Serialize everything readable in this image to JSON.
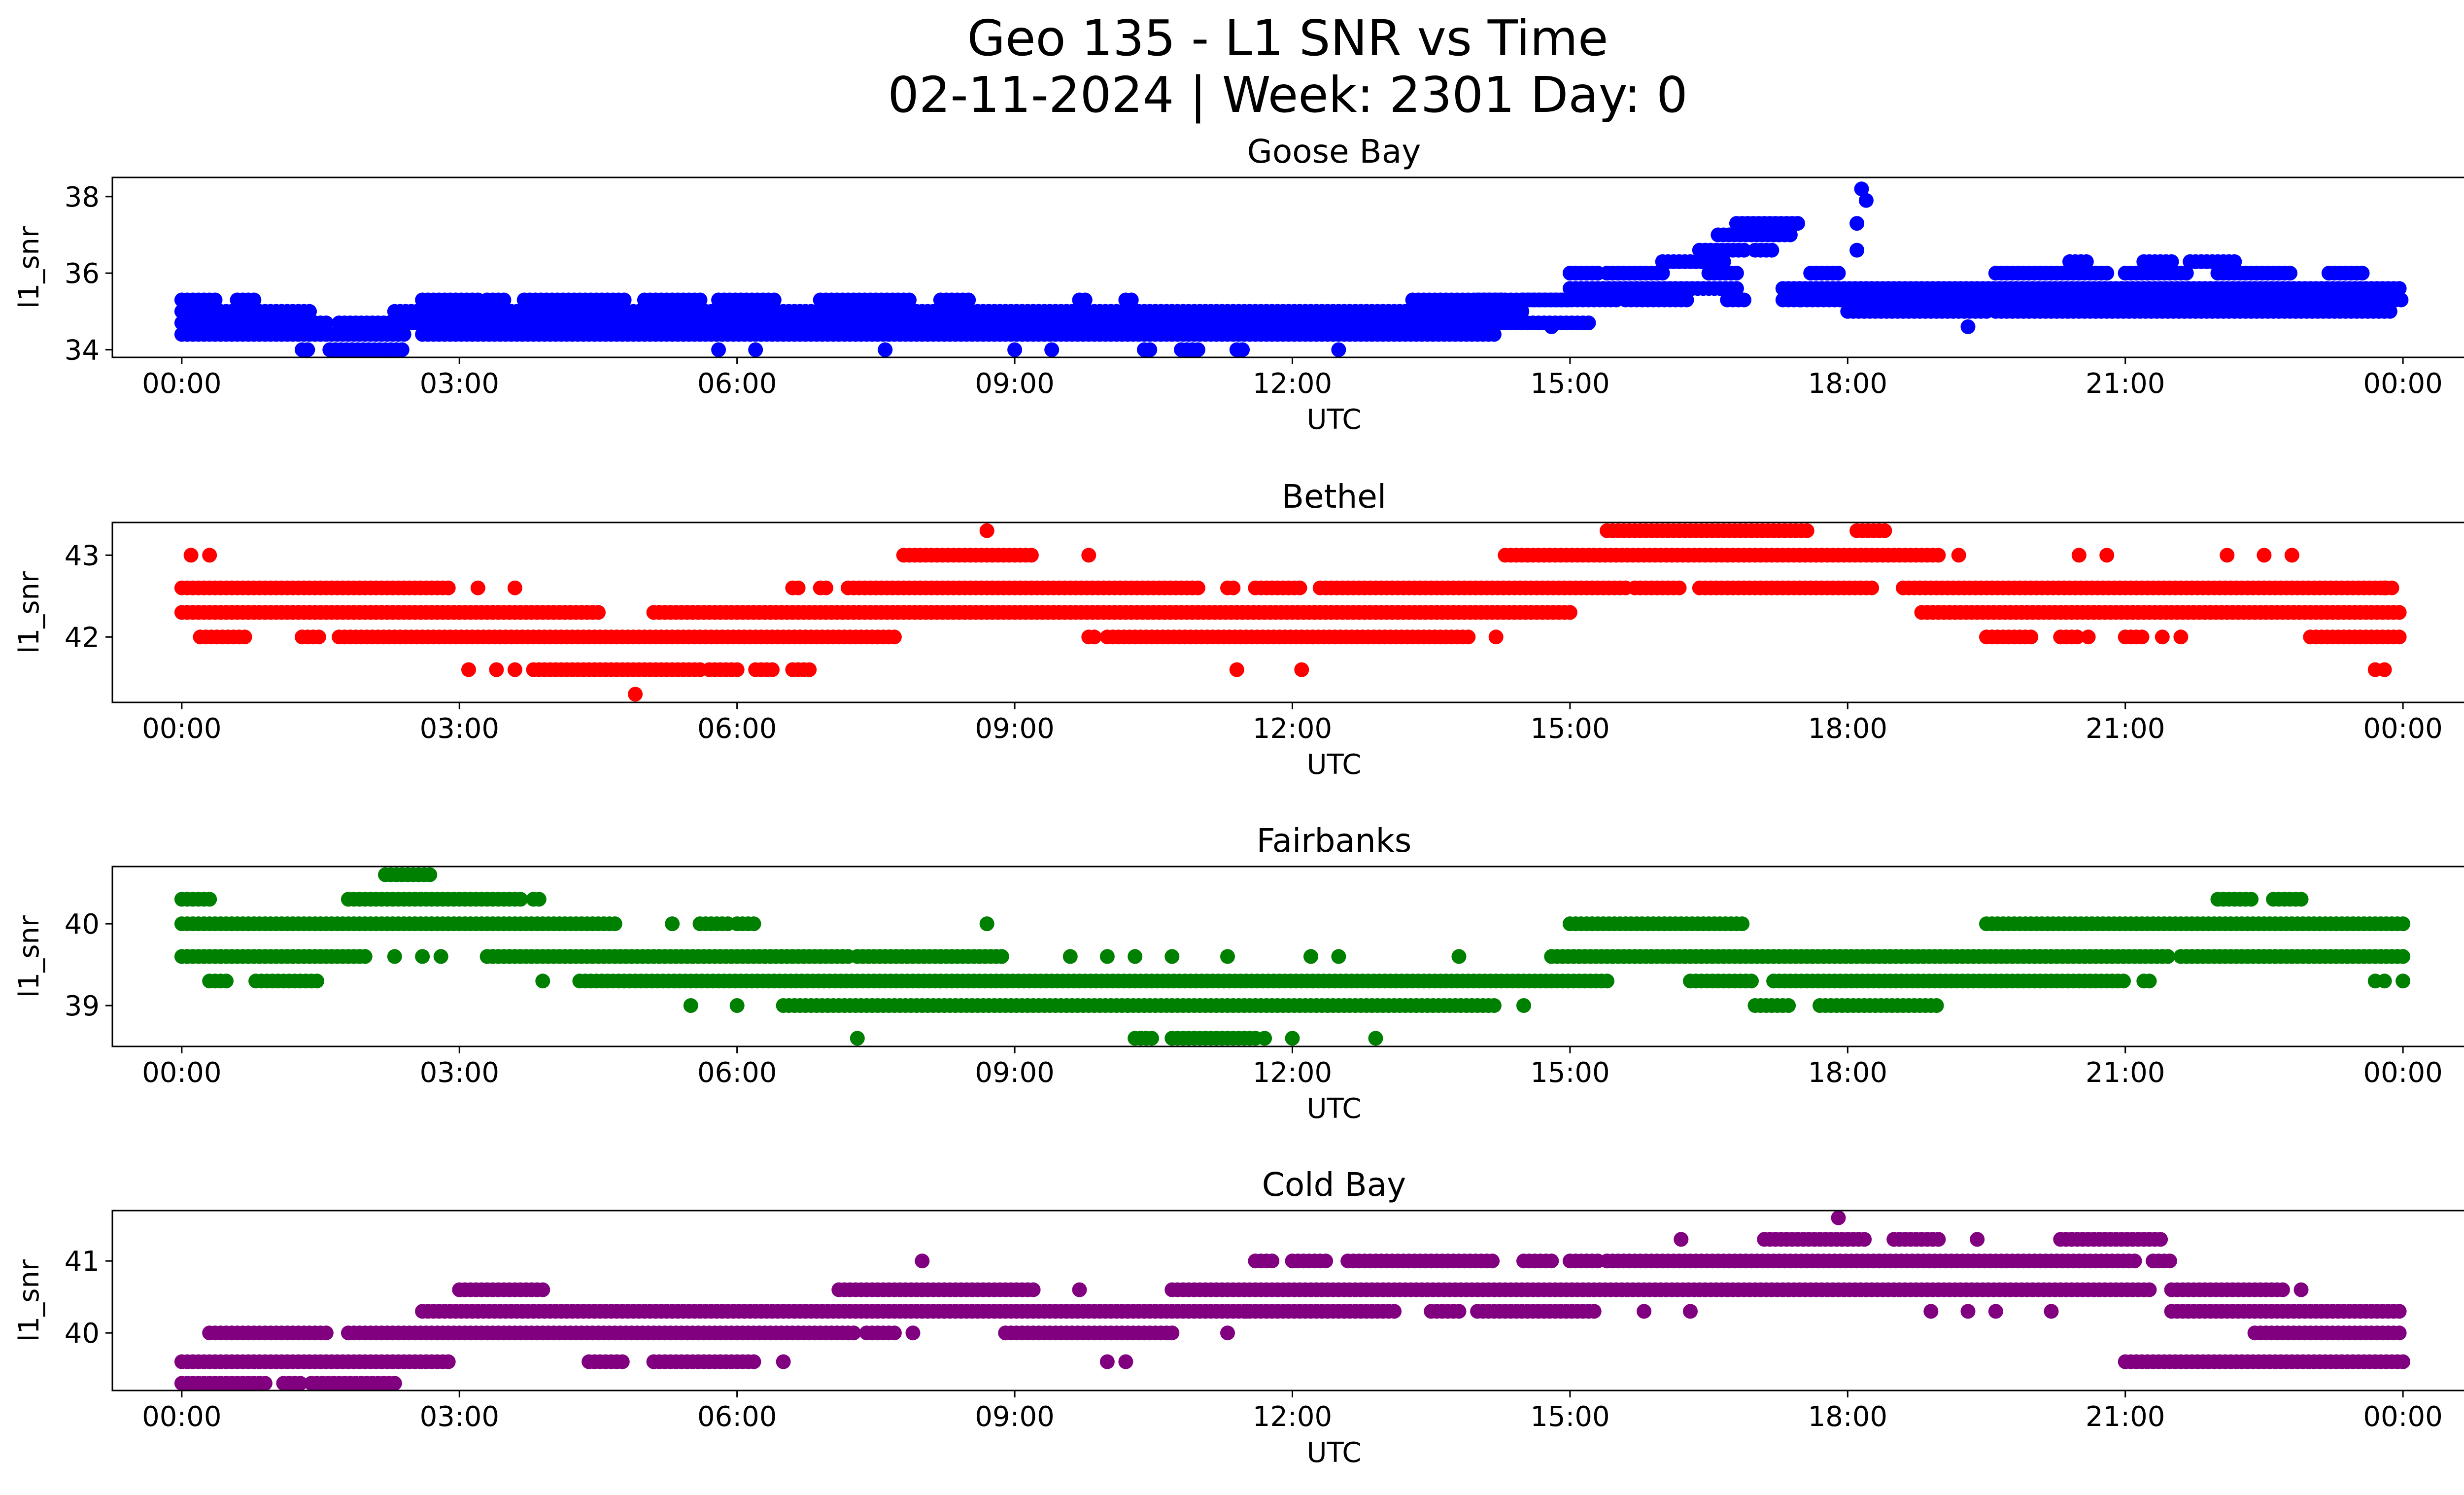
{
  "figure": {
    "title_line1": "Geo 135 - L1 SNR vs Time",
    "title_line2": "02-11-2024 | Week: 2301 Day: 0"
  },
  "chart_data": [
    {
      "type": "scatter",
      "title": "Goose Bay",
      "xlabel": "UTC",
      "ylabel": "l1_snr",
      "color": "#0000ff",
      "xlim_hours": [
        -0.75,
        25.65
      ],
      "ylim": [
        33.8,
        38.5
      ],
      "xticks": [
        0,
        3,
        6,
        9,
        12,
        15,
        18,
        21,
        24
      ],
      "xtick_labels": [
        "00:00",
        "03:00",
        "06:00",
        "09:00",
        "12:00",
        "15:00",
        "18:00",
        "21:00",
        "00:00"
      ],
      "yticks": [
        34,
        36,
        38
      ],
      "ytick_labels": [
        "34",
        "36",
        "38"
      ],
      "bands": [
        {
          "level": 35.3,
          "ranges": [
            [
              0.0,
              0.4
            ],
            [
              0.6,
              0.8
            ],
            [
              2.6,
              3.2
            ],
            [
              3.3,
              3.5
            ],
            [
              3.7,
              4.8
            ],
            [
              5.0,
              5.6
            ],
            [
              5.8,
              6.4
            ],
            [
              6.9,
              7.9
            ],
            [
              8.2,
              8.5
            ],
            [
              9.7,
              9.8
            ],
            [
              10.2,
              10.3
            ],
            [
              13.3,
              14.3
            ],
            [
              14.5,
              15.0
            ]
          ]
        },
        {
          "level": 35.0,
          "ranges": [
            [
              0.0,
              1.4
            ],
            [
              2.3,
              14.5
            ]
          ]
        },
        {
          "level": 34.7,
          "ranges": [
            [
              0.0,
              1.6
            ],
            [
              1.7,
              15.2
            ]
          ]
        },
        {
          "level": 34.4,
          "ranges": [
            [
              0.0,
              2.4
            ],
            [
              2.6,
              14.2
            ]
          ]
        },
        {
          "level": 34.0,
          "ranges": [
            [
              1.3,
              1.4
            ],
            [
              1.6,
              2.4
            ],
            [
              10.4,
              10.5
            ],
            [
              10.8,
              11.0
            ],
            [
              11.4,
              11.5
            ]
          ]
        },
        {
          "level": 35.3,
          "ranges": [
            [
              14.0,
              15.5
            ],
            [
              15.6,
              16.3
            ],
            [
              16.7,
              16.9
            ],
            [
              17.3,
              17.5
            ],
            [
              17.5,
              24.0
            ]
          ]
        },
        {
          "level": 35.6,
          "ranges": [
            [
              15.0,
              16.8
            ],
            [
              17.3,
              24.0
            ]
          ]
        },
        {
          "level": 36.0,
          "ranges": [
            [
              15.0,
              15.3
            ],
            [
              15.4,
              16.0
            ],
            [
              16.5,
              16.8
            ],
            [
              17.6,
              17.9
            ],
            [
              19.6,
              20.8
            ],
            [
              21.0,
              21.7
            ],
            [
              22.0,
              22.8
            ],
            [
              23.2,
              23.6
            ]
          ]
        },
        {
          "level": 36.3,
          "ranges": [
            [
              16.0,
              16.7
            ],
            [
              20.4,
              20.6
            ],
            [
              21.2,
              21.5
            ],
            [
              21.7,
              22.2
            ]
          ]
        },
        {
          "level": 36.6,
          "ranges": [
            [
              16.4,
              16.9
            ],
            [
              17.0,
              17.2
            ]
          ]
        },
        {
          "level": 37.0,
          "ranges": [
            [
              16.6,
              17.4
            ]
          ]
        },
        {
          "level": 37.3,
          "ranges": [
            [
              16.8,
              17.5
            ]
          ]
        },
        {
          "level": 35.0,
          "ranges": [
            [
              18.0,
              19.5
            ],
            [
              19.6,
              23.9
            ]
          ]
        }
      ],
      "points": [
        [
          18.15,
          38.2
        ],
        [
          18.2,
          37.9
        ],
        [
          18.1,
          37.3
        ],
        [
          18.1,
          36.6
        ],
        [
          19.3,
          34.6
        ],
        [
          14.8,
          34.6
        ],
        [
          12.5,
          34.0
        ],
        [
          7.6,
          34.0
        ],
        [
          9.0,
          34.0
        ],
        [
          5.8,
          34.0
        ],
        [
          6.2,
          34.0
        ],
        [
          9.4,
          34.0
        ]
      ]
    },
    {
      "type": "scatter",
      "title": "Bethel",
      "xlabel": "UTC",
      "ylabel": "l1_snr",
      "color": "#ff0000",
      "xlim_hours": [
        -0.75,
        25.65
      ],
      "ylim": [
        41.2,
        43.4
      ],
      "xticks": [
        0,
        3,
        6,
        9,
        12,
        15,
        18,
        21,
        24
      ],
      "xtick_labels": [
        "00:00",
        "03:00",
        "06:00",
        "09:00",
        "12:00",
        "15:00",
        "18:00",
        "21:00",
        "00:00"
      ],
      "yticks": [
        42,
        43
      ],
      "ytick_labels": [
        "42",
        "43"
      ],
      "bands": [
        {
          "level": 42.6,
          "ranges": [
            [
              0.0,
              2.9
            ],
            [
              6.6,
              6.7
            ],
            [
              6.9,
              7.0
            ],
            [
              7.2,
              11.0
            ],
            [
              11.3,
              11.4
            ],
            [
              11.6,
              12.1
            ],
            [
              12.3,
              15.6
            ],
            [
              15.7,
              16.2
            ],
            [
              16.4,
              18.3
            ],
            [
              18.6,
              23.9
            ]
          ]
        },
        {
          "level": 42.3,
          "ranges": [
            [
              0.0,
              4.5
            ],
            [
              5.1,
              15.0
            ],
            [
              18.8,
              24.0
            ]
          ]
        },
        {
          "level": 42.0,
          "ranges": [
            [
              0.2,
              0.7
            ],
            [
              1.3,
              1.5
            ],
            [
              1.7,
              7.7
            ],
            [
              9.8,
              9.9
            ],
            [
              10.0,
              13.9
            ],
            [
              19.5,
              20.0
            ],
            [
              20.3,
              20.5
            ],
            [
              21.0,
              21.2
            ],
            [
              23.0,
              24.0
            ]
          ]
        },
        {
          "level": 41.6,
          "ranges": [
            [
              3.8,
              5.6
            ],
            [
              5.7,
              6.0
            ],
            [
              6.2,
              6.4
            ],
            [
              6.6,
              6.8
            ]
          ]
        },
        {
          "level": 43.0,
          "ranges": [
            [
              7.8,
              9.2
            ],
            [
              14.3,
              19.0
            ]
          ]
        },
        {
          "level": 43.3,
          "ranges": [
            [
              15.4,
              17.6
            ],
            [
              18.1,
              18.4
            ]
          ]
        }
      ],
      "points": [
        [
          0.1,
          43.0
        ],
        [
          0.3,
          43.0
        ],
        [
          3.1,
          41.6
        ],
        [
          3.4,
          41.6
        ],
        [
          3.6,
          41.6
        ],
        [
          3.2,
          42.6
        ],
        [
          3.6,
          42.6
        ],
        [
          4.9,
          41.3
        ],
        [
          8.7,
          43.3
        ],
        [
          9.8,
          43.0
        ],
        [
          11.4,
          41.6
        ],
        [
          12.1,
          41.6
        ],
        [
          14.2,
          42.0
        ],
        [
          19.2,
          43.0
        ],
        [
          20.5,
          43.0
        ],
        [
          20.8,
          43.0
        ],
        [
          22.1,
          43.0
        ],
        [
          22.5,
          43.0
        ],
        [
          22.8,
          43.0
        ],
        [
          23.8,
          42.6
        ],
        [
          20.6,
          42.0
        ],
        [
          21.4,
          42.0
        ],
        [
          21.6,
          42.0
        ],
        [
          23.7,
          41.6
        ],
        [
          23.8,
          41.6
        ]
      ]
    },
    {
      "type": "scatter",
      "title": "Fairbanks",
      "xlabel": "UTC",
      "ylabel": "l1_snr",
      "color": "#008000",
      "xlim_hours": [
        -0.75,
        25.65
      ],
      "ylim": [
        38.5,
        40.7
      ],
      "xticks": [
        0,
        3,
        6,
        9,
        12,
        15,
        18,
        21,
        24
      ],
      "xtick_labels": [
        "00:00",
        "03:00",
        "06:00",
        "09:00",
        "12:00",
        "15:00",
        "18:00",
        "21:00",
        "00:00"
      ],
      "yticks": [
        39,
        40
      ],
      "ytick_labels": [
        "39",
        "40"
      ],
      "bands": [
        {
          "level": 40.0,
          "ranges": [
            [
              0.0,
              4.7
            ],
            [
              5.6,
              5.9
            ],
            [
              6.0,
              6.2
            ],
            [
              15.0,
              16.9
            ],
            [
              19.5,
              24.0
            ]
          ]
        },
        {
          "level": 39.6,
          "ranges": [
            [
              0.0,
              2.0
            ],
            [
              3.3,
              7.2
            ],
            [
              7.3,
              8.9
            ],
            [
              14.8,
              21.5
            ],
            [
              21.6,
              24.0
            ]
          ]
        },
        {
          "level": 40.3,
          "ranges": [
            [
              0.0,
              0.3
            ],
            [
              1.8,
              3.7
            ],
            [
              3.8,
              3.9
            ],
            [
              22.0,
              22.4
            ],
            [
              22.6,
              22.9
            ]
          ]
        },
        {
          "level": 39.3,
          "ranges": [
            [
              0.3,
              0.5
            ],
            [
              0.8,
              1.5
            ],
            [
              4.3,
              15.4
            ],
            [
              16.3,
              17.0
            ],
            [
              17.2,
              21.0
            ],
            [
              21.2,
              21.3
            ]
          ]
        },
        {
          "level": 39.0,
          "ranges": [
            [
              6.5,
              14.2
            ],
            [
              17.0,
              17.4
            ],
            [
              17.7,
              19.0
            ]
          ]
        },
        {
          "level": 38.6,
          "ranges": [
            [
              10.3,
              10.5
            ],
            [
              10.7,
              11.6
            ]
          ]
        },
        {
          "level": 40.6,
          "ranges": [
            [
              2.2,
              2.7
            ]
          ]
        }
      ],
      "points": [
        [
          2.3,
          39.6
        ],
        [
          2.6,
          39.6
        ],
        [
          2.8,
          39.6
        ],
        [
          3.9,
          39.3
        ],
        [
          4.8,
          39.6
        ],
        [
          5.3,
          40.0
        ],
        [
          5.5,
          39.0
        ],
        [
          6.0,
          39.0
        ],
        [
          8.7,
          40.0
        ],
        [
          9.6,
          39.6
        ],
        [
          10.0,
          39.6
        ],
        [
          10.3,
          39.6
        ],
        [
          10.7,
          39.6
        ],
        [
          11.3,
          39.6
        ],
        [
          12.2,
          39.6
        ],
        [
          12.5,
          39.6
        ],
        [
          13.8,
          39.6
        ],
        [
          14.5,
          39.0
        ],
        [
          7.3,
          38.6
        ],
        [
          12.0,
          38.6
        ],
        [
          11.7,
          38.6
        ],
        [
          12.9,
          38.6
        ],
        [
          23.7,
          39.3
        ],
        [
          24.0,
          39.3
        ],
        [
          23.8,
          39.3
        ]
      ]
    },
    {
      "type": "scatter",
      "title": "Cold Bay",
      "xlabel": "UTC",
      "ylabel": "l1_snr",
      "color": "#800080",
      "xlim_hours": [
        -0.75,
        25.65
      ],
      "ylim": [
        39.2,
        41.7
      ],
      "xticks": [
        0,
        3,
        6,
        9,
        12,
        15,
        18,
        21,
        24
      ],
      "xtick_labels": [
        "00:00",
        "03:00",
        "06:00",
        "09:00",
        "12:00",
        "15:00",
        "18:00",
        "21:00",
        "00:00"
      ],
      "yticks": [
        40,
        41
      ],
      "ytick_labels": [
        "40",
        "41"
      ],
      "bands": [
        {
          "level": 39.6,
          "ranges": [
            [
              0.0,
              2.9
            ],
            [
              4.4,
              4.8
            ],
            [
              5.1,
              6.2
            ],
            [
              21.0,
              24.0
            ]
          ]
        },
        {
          "level": 39.3,
          "ranges": [
            [
              0.0,
              0.9
            ],
            [
              1.1,
              1.3
            ],
            [
              1.4,
              2.3
            ]
          ]
        },
        {
          "level": 40.0,
          "ranges": [
            [
              0.3,
              1.6
            ],
            [
              1.8,
              7.3
            ],
            [
              7.4,
              7.7
            ],
            [
              8.9,
              10.7
            ],
            [
              22.4,
              24.0
            ]
          ]
        },
        {
          "level": 40.3,
          "ranges": [
            [
              2.6,
              13.1
            ],
            [
              13.5,
              13.8
            ],
            [
              14.0,
              15.3
            ],
            [
              21.5,
              24.0
            ]
          ]
        },
        {
          "level": 40.6,
          "ranges": [
            [
              3.0,
              3.9
            ],
            [
              7.1,
              9.2
            ],
            [
              10.7,
              21.3
            ],
            [
              21.5,
              22.7
            ]
          ]
        },
        {
          "level": 41.0,
          "ranges": [
            [
              11.6,
              11.8
            ],
            [
              12.0,
              12.4
            ],
            [
              12.6,
              14.2
            ],
            [
              14.5,
              14.8
            ],
            [
              15.0,
              15.3
            ],
            [
              15.4,
              21.1
            ],
            [
              21.3,
              21.5
            ]
          ]
        },
        {
          "level": 41.3,
          "ranges": [
            [
              17.1,
              18.2
            ],
            [
              18.5,
              19.0
            ],
            [
              20.3,
              21.4
            ]
          ]
        }
      ],
      "points": [
        [
          8.0,
          41.0
        ],
        [
          9.7,
          40.6
        ],
        [
          10.0,
          39.6
        ],
        [
          10.2,
          39.6
        ],
        [
          11.5,
          40.3
        ],
        [
          11.3,
          40.0
        ],
        [
          7.9,
          40.0
        ],
        [
          6.5,
          39.6
        ],
        [
          16.2,
          41.3
        ],
        [
          17.9,
          41.6
        ],
        [
          19.4,
          41.3
        ],
        [
          15.8,
          40.3
        ],
        [
          16.3,
          40.3
        ],
        [
          18.9,
          40.3
        ],
        [
          19.3,
          40.3
        ],
        [
          19.6,
          40.3
        ],
        [
          20.2,
          40.3
        ],
        [
          22.9,
          40.6
        ]
      ]
    }
  ]
}
